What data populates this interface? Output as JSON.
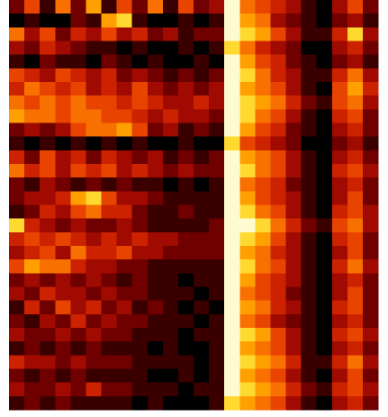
{
  "chart_data": {
    "type": "heatmap",
    "colormap": [
      "#000000",
      "#3a0000",
      "#700000",
      "#a00a00",
      "#cc2200",
      "#e84400",
      "#f87000",
      "#ffa000",
      "#ffd830",
      "#fffbd0"
    ],
    "values": [
      [
        2,
        5,
        1,
        6,
        2,
        7,
        1,
        5,
        2,
        6,
        1,
        5,
        2,
        3,
        9,
        6,
        5,
        4,
        3,
        1,
        0,
        3,
        5,
        2
      ],
      [
        0,
        1,
        0,
        0,
        2,
        1,
        7,
        8,
        1,
        0,
        0,
        1,
        0,
        1,
        9,
        7,
        6,
        3,
        2,
        1,
        0,
        2,
        3,
        1
      ],
      [
        6,
        3,
        5,
        2,
        4,
        3,
        5,
        3,
        4,
        2,
        3,
        1,
        2,
        2,
        9,
        8,
        7,
        5,
        3,
        1,
        1,
        4,
        8,
        3
      ],
      [
        3,
        2,
        4,
        3,
        2,
        1,
        1,
        0,
        1,
        0,
        0,
        1,
        0,
        1,
        8,
        6,
        4,
        3,
        2,
        0,
        0,
        3,
        4,
        2
      ],
      [
        1,
        0,
        2,
        1,
        1,
        0,
        2,
        1,
        0,
        1,
        0,
        0,
        1,
        0,
        9,
        7,
        5,
        4,
        2,
        1,
        0,
        2,
        3,
        1
      ],
      [
        5,
        4,
        3,
        5,
        4,
        3,
        4,
        2,
        3,
        2,
        1,
        2,
        1,
        2,
        9,
        8,
        6,
        4,
        3,
        1,
        1,
        4,
        6,
        3
      ],
      [
        4,
        6,
        5,
        4,
        5,
        3,
        4,
        3,
        5,
        3,
        2,
        3,
        2,
        3,
        9,
        7,
        6,
        5,
        3,
        1,
        0,
        5,
        7,
        4
      ],
      [
        6,
        5,
        6,
        5,
        6,
        5,
        5,
        4,
        5,
        4,
        3,
        3,
        4,
        3,
        9,
        8,
        7,
        6,
        4,
        2,
        1,
        5,
        6,
        3
      ],
      [
        7,
        6,
        6,
        5,
        6,
        6,
        5,
        5,
        4,
        3,
        4,
        3,
        3,
        2,
        9,
        8,
        6,
        5,
        3,
        1,
        0,
        4,
        5,
        2
      ],
      [
        2,
        3,
        2,
        3,
        5,
        6,
        6,
        7,
        5,
        2,
        3,
        1,
        2,
        1,
        9,
        7,
        5,
        4,
        2,
        1,
        0,
        3,
        4,
        2
      ],
      [
        1,
        0,
        1,
        0,
        1,
        0,
        1,
        0,
        1,
        0,
        0,
        1,
        0,
        0,
        8,
        5,
        4,
        3,
        2,
        0,
        0,
        2,
        3,
        1
      ],
      [
        4,
        2,
        5,
        3,
        4,
        2,
        4,
        3,
        2,
        3,
        1,
        2,
        1,
        2,
        9,
        7,
        6,
        5,
        3,
        1,
        0,
        3,
        4,
        2
      ],
      [
        6,
        4,
        5,
        3,
        5,
        4,
        5,
        3,
        4,
        3,
        2,
        3,
        2,
        2,
        9,
        8,
        6,
        5,
        3,
        1,
        0,
        4,
        5,
        3
      ],
      [
        2,
        1,
        3,
        2,
        1,
        2,
        1,
        2,
        1,
        1,
        0,
        1,
        0,
        1,
        9,
        6,
        5,
        4,
        2,
        1,
        0,
        3,
        4,
        2
      ],
      [
        2,
        3,
        3,
        4,
        7,
        8,
        5,
        3,
        3,
        2,
        1,
        1,
        1,
        1,
        9,
        7,
        5,
        4,
        3,
        1,
        0,
        3,
        5,
        2
      ],
      [
        1,
        2,
        4,
        3,
        5,
        6,
        4,
        4,
        2,
        1,
        1,
        2,
        1,
        1,
        9,
        8,
        6,
        5,
        3,
        1,
        0,
        4,
        5,
        3
      ],
      [
        8,
        4,
        3,
        2,
        3,
        2,
        2,
        3,
        2,
        1,
        1,
        1,
        1,
        2,
        9,
        9,
        8,
        6,
        4,
        2,
        1,
        5,
        6,
        3
      ],
      [
        4,
        5,
        4,
        5,
        4,
        3,
        4,
        3,
        4,
        3,
        3,
        2,
        2,
        2,
        9,
        8,
        7,
        5,
        3,
        1,
        0,
        4,
        5,
        2
      ],
      [
        3,
        4,
        5,
        3,
        6,
        4,
        4,
        5,
        3,
        3,
        2,
        2,
        2,
        2,
        9,
        7,
        6,
        4,
        3,
        1,
        0,
        3,
        5,
        2
      ],
      [
        5,
        7,
        6,
        6,
        4,
        3,
        3,
        2,
        2,
        1,
        1,
        1,
        1,
        1,
        9,
        8,
        6,
        5,
        3,
        1,
        0,
        4,
        6,
        3
      ],
      [
        2,
        3,
        2,
        3,
        2,
        3,
        2,
        1,
        2,
        1,
        1,
        0,
        1,
        1,
        9,
        7,
        5,
        4,
        3,
        1,
        0,
        3,
        4,
        2
      ],
      [
        3,
        2,
        4,
        3,
        3,
        2,
        3,
        2,
        2,
        1,
        1,
        1,
        0,
        1,
        9,
        6,
        5,
        4,
        2,
        1,
        0,
        3,
        5,
        2
      ],
      [
        1,
        4,
        2,
        5,
        3,
        4,
        2,
        3,
        1,
        2,
        1,
        0,
        1,
        0,
        9,
        7,
        6,
        4,
        3,
        1,
        0,
        4,
        5,
        2
      ],
      [
        2,
        1,
        3,
        2,
        4,
        2,
        3,
        2,
        2,
        1,
        1,
        1,
        0,
        1,
        9,
        6,
        5,
        3,
        2,
        1,
        0,
        3,
        4,
        2
      ],
      [
        3,
        2,
        2,
        3,
        2,
        3,
        2,
        2,
        1,
        1,
        1,
        0,
        1,
        1,
        9,
        8,
        7,
        5,
        3,
        1,
        0,
        4,
        5,
        3
      ],
      [
        1,
        2,
        1,
        2,
        1,
        2,
        1,
        1,
        1,
        0,
        1,
        0,
        0,
        1,
        9,
        7,
        6,
        5,
        3,
        1,
        0,
        3,
        4,
        2
      ],
      [
        4,
        3,
        3,
        2,
        3,
        2,
        2,
        2,
        1,
        1,
        1,
        1,
        0,
        1,
        9,
        8,
        7,
        6,
        4,
        1,
        1,
        4,
        6,
        3
      ],
      [
        2,
        1,
        2,
        1,
        2,
        1,
        1,
        1,
        1,
        0,
        0,
        1,
        0,
        1,
        9,
        7,
        6,
        5,
        3,
        1,
        0,
        3,
        5,
        2
      ],
      [
        3,
        2,
        2,
        3,
        2,
        4,
        2,
        2,
        1,
        1,
        1,
        0,
        1,
        1,
        9,
        8,
        7,
        6,
        4,
        2,
        1,
        4,
        5,
        3
      ],
      [
        1,
        2,
        1,
        2,
        1,
        1,
        1,
        1,
        0,
        1,
        0,
        0,
        0,
        1,
        8,
        7,
        6,
        5,
        3,
        1,
        0,
        3,
        4,
        2
      ]
    ]
  }
}
